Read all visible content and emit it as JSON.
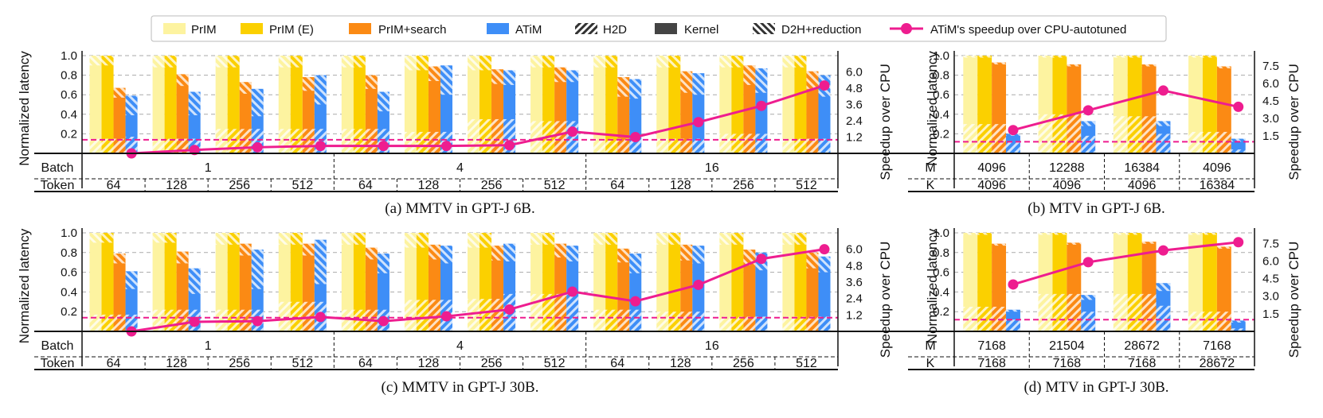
{
  "colors": {
    "prim": "#fdf3a0",
    "prim_e": "#fbd000",
    "prim_search": "#fb8a14",
    "atim": "#3e8ef7",
    "speedup": "#ee1d8f"
  },
  "legend": {
    "items": [
      {
        "label": "PrIM",
        "kind": "fill",
        "color": "#fdf3a0"
      },
      {
        "label": "PrIM (E)",
        "kind": "fill",
        "color": "#fbd000"
      },
      {
        "label": "PrIM+search",
        "kind": "fill",
        "color": "#fb8a14"
      },
      {
        "label": "ATiM",
        "kind": "fill",
        "color": "#3e8ef7"
      },
      {
        "label": "H2D",
        "kind": "h2d"
      },
      {
        "label": "Kernel",
        "kind": "kernel"
      },
      {
        "label": "D2H+reduction",
        "kind": "d2h"
      },
      {
        "label": "ATiM's speedup over CPU-autotuned",
        "kind": "line"
      }
    ]
  },
  "chart_data": [
    {
      "id": "a",
      "type": "bar",
      "caption": "(a) MMTV in GPT-J 6B.",
      "ylabel": "Normalized latency",
      "y2label": "Speedup over CPU",
      "ylim": [
        0,
        1.0
      ],
      "yticks": [
        "0.2",
        "0.4",
        "0.6",
        "0.8",
        "1.0"
      ],
      "y2lim": [
        0,
        7.2
      ],
      "y2ticks": [
        "1.2",
        "2.4",
        "3.6",
        "4.8",
        "6.0"
      ],
      "cpu_baseline": 1.0,
      "series_names": [
        "PrIM",
        "PrIM (E)",
        "PrIM+search",
        "ATiM"
      ],
      "row1": {
        "label": "Batch",
        "groups": [
          {
            "text": "1",
            "span": 4
          },
          {
            "text": "4",
            "span": 4
          },
          {
            "text": "16",
            "span": 4
          }
        ]
      },
      "row2": {
        "label": "Token",
        "values": [
          "64",
          "128",
          "256",
          "512",
          "64",
          "128",
          "256",
          "512",
          "64",
          "128",
          "256",
          "512"
        ]
      },
      "totals": [
        [
          1.0,
          1.0,
          0.67,
          0.59
        ],
        [
          1.0,
          1.0,
          0.81,
          0.63
        ],
        [
          1.0,
          1.0,
          0.73,
          0.66
        ],
        [
          1.0,
          1.0,
          0.78,
          0.8
        ],
        [
          1.0,
          1.0,
          0.8,
          0.63
        ],
        [
          1.0,
          1.0,
          0.89,
          0.9
        ],
        [
          1.0,
          1.0,
          0.86,
          0.85
        ],
        [
          1.0,
          1.0,
          0.88,
          0.85
        ],
        [
          1.0,
          1.0,
          0.78,
          0.76
        ],
        [
          1.0,
          1.0,
          0.84,
          0.82
        ],
        [
          1.0,
          1.0,
          0.9,
          0.87
        ],
        [
          1.0,
          1.0,
          0.84,
          0.8
        ]
      ],
      "h2d": [
        [
          0.15,
          0.15,
          0.15,
          0.17
        ],
        [
          0.15,
          0.15,
          0.15,
          0.15
        ],
        [
          0.25,
          0.25,
          0.25,
          0.25
        ],
        [
          0.25,
          0.25,
          0.25,
          0.25
        ],
        [
          0.25,
          0.25,
          0.25,
          0.25
        ],
        [
          0.22,
          0.22,
          0.22,
          0.22
        ],
        [
          0.35,
          0.35,
          0.35,
          0.35
        ],
        [
          0.33,
          0.33,
          0.33,
          0.33
        ],
        [
          0.15,
          0.15,
          0.15,
          0.15
        ],
        [
          0.15,
          0.15,
          0.15,
          0.15
        ],
        [
          0.2,
          0.2,
          0.2,
          0.2
        ],
        [
          0.15,
          0.15,
          0.15,
          0.15
        ]
      ],
      "d2h": [
        [
          0.1,
          0.1,
          0.1,
          0.2
        ],
        [
          0.12,
          0.12,
          0.12,
          0.24
        ],
        [
          0.12,
          0.12,
          0.12,
          0.28
        ],
        [
          0.12,
          0.12,
          0.14,
          0.3
        ],
        [
          0.12,
          0.12,
          0.14,
          0.2
        ],
        [
          0.15,
          0.15,
          0.15,
          0.3
        ],
        [
          0.15,
          0.15,
          0.15,
          0.15
        ],
        [
          0.12,
          0.12,
          0.15,
          0.12
        ],
        [
          0.12,
          0.12,
          0.2,
          0.2
        ],
        [
          0.12,
          0.12,
          0.22,
          0.22
        ],
        [
          0.12,
          0.12,
          0.2,
          0.25
        ],
        [
          0.12,
          0.12,
          0.18,
          0.22
        ]
      ],
      "speedup": [
        0.0,
        0.25,
        0.45,
        0.55,
        0.55,
        0.55,
        0.6,
        1.6,
        1.2,
        2.3,
        3.5,
        5.0
      ]
    },
    {
      "id": "b",
      "type": "bar",
      "caption": "(b) MTV in GPT-J 6B.",
      "ylabel": "Normalized latency",
      "y2label": "Speedup over CPU",
      "ylim": [
        0,
        1.0
      ],
      "yticks": [
        "0.2",
        "0.4",
        "0.6",
        "0.8",
        "1.0"
      ],
      "y2lim": [
        0,
        8.4
      ],
      "y2ticks": [
        "1.5",
        "3.0",
        "4.5",
        "6.0",
        "7.5"
      ],
      "cpu_baseline": 1.0,
      "series_names": [
        "PrIM",
        "PrIM (E)",
        "PrIM+search",
        "ATiM"
      ],
      "row1": {
        "label": "M",
        "values": [
          "4096",
          "12288",
          "16384",
          "4096"
        ]
      },
      "row2": {
        "label": "K",
        "values": [
          "4096",
          "4096",
          "4096",
          "16384"
        ]
      },
      "totals": [
        [
          1.0,
          1.0,
          0.93,
          0.2
        ],
        [
          1.0,
          1.0,
          0.91,
          0.33
        ],
        [
          1.0,
          1.0,
          0.91,
          0.33
        ],
        [
          1.0,
          1.0,
          0.89,
          0.15
        ]
      ],
      "h2d": [
        [
          0.3,
          0.3,
          0.3,
          0.12
        ],
        [
          0.4,
          0.4,
          0.4,
          0.18
        ],
        [
          0.38,
          0.38,
          0.38,
          0.2
        ],
        [
          0.22,
          0.22,
          0.22,
          0.04
        ]
      ],
      "d2h": [
        [
          0.02,
          0.02,
          0.02,
          0.02
        ],
        [
          0.02,
          0.02,
          0.02,
          0.05
        ],
        [
          0.02,
          0.02,
          0.02,
          0.05
        ],
        [
          0.02,
          0.02,
          0.02,
          0.03
        ]
      ],
      "speedup": [
        2.0,
        3.7,
        5.4,
        4.0
      ]
    },
    {
      "id": "c",
      "type": "bar",
      "caption": "(c) MMTV in GPT-J 30B.",
      "ylabel": "Normalized latency",
      "y2label": "Speedup over CPU",
      "ylim": [
        0,
        1.0
      ],
      "yticks": [
        "0.2",
        "0.4",
        "0.6",
        "0.8",
        "1.0"
      ],
      "y2lim": [
        0,
        7.2
      ],
      "y2ticks": [
        "1.2",
        "2.4",
        "3.6",
        "4.8",
        "6.0"
      ],
      "cpu_baseline": 1.0,
      "series_names": [
        "PrIM",
        "PrIM (E)",
        "PrIM+search",
        "ATiM"
      ],
      "row1": {
        "label": "Batch",
        "groups": [
          {
            "text": "1",
            "span": 4
          },
          {
            "text": "4",
            "span": 4
          },
          {
            "text": "16",
            "span": 4
          }
        ]
      },
      "row2": {
        "label": "Token",
        "values": [
          "64",
          "128",
          "256",
          "512",
          "64",
          "128",
          "256",
          "512",
          "64",
          "128",
          "256",
          "512"
        ]
      },
      "totals": [
        [
          1.0,
          1.0,
          0.79,
          0.61
        ],
        [
          1.0,
          1.0,
          0.81,
          0.64
        ],
        [
          1.0,
          1.0,
          0.89,
          0.83
        ],
        [
          1.0,
          1.0,
          0.89,
          0.93
        ],
        [
          1.0,
          1.0,
          0.85,
          0.79
        ],
        [
          1.0,
          1.0,
          0.88,
          0.87
        ],
        [
          1.0,
          1.0,
          0.87,
          0.89
        ],
        [
          1.0,
          1.0,
          0.89,
          0.87
        ],
        [
          1.0,
          1.0,
          0.84,
          0.79
        ],
        [
          1.0,
          1.0,
          0.88,
          0.87
        ],
        [
          1.0,
          1.0,
          0.83,
          0.8
        ],
        [
          1.0,
          1.0,
          0.8,
          0.76
        ]
      ],
      "h2d": [
        [
          0.17,
          0.17,
          0.17,
          0.17
        ],
        [
          0.22,
          0.22,
          0.22,
          0.22
        ],
        [
          0.22,
          0.22,
          0.22,
          0.22
        ],
        [
          0.3,
          0.3,
          0.3,
          0.3
        ],
        [
          0.22,
          0.22,
          0.22,
          0.22
        ],
        [
          0.32,
          0.32,
          0.32,
          0.32
        ],
        [
          0.33,
          0.33,
          0.33,
          0.38
        ],
        [
          0.38,
          0.38,
          0.38,
          0.38
        ],
        [
          0.22,
          0.22,
          0.22,
          0.22
        ],
        [
          0.2,
          0.2,
          0.2,
          0.2
        ],
        [
          0.15,
          0.15,
          0.15,
          0.15
        ],
        [
          0.15,
          0.15,
          0.15,
          0.15
        ]
      ],
      "d2h": [
        [
          0.1,
          0.1,
          0.1,
          0.18
        ],
        [
          0.1,
          0.1,
          0.12,
          0.26
        ],
        [
          0.12,
          0.12,
          0.12,
          0.4
        ],
        [
          0.12,
          0.12,
          0.12,
          0.45
        ],
        [
          0.12,
          0.12,
          0.12,
          0.2
        ],
        [
          0.15,
          0.15,
          0.15,
          0.18
        ],
        [
          0.15,
          0.15,
          0.15,
          0.18
        ],
        [
          0.12,
          0.12,
          0.14,
          0.16
        ],
        [
          0.12,
          0.12,
          0.14,
          0.2
        ],
        [
          0.12,
          0.12,
          0.16,
          0.18
        ],
        [
          0.12,
          0.12,
          0.16,
          0.18
        ],
        [
          0.12,
          0.12,
          0.16,
          0.16
        ]
      ],
      "speedup": [
        0.0,
        0.7,
        0.75,
        1.05,
        0.75,
        1.1,
        1.6,
        2.9,
        2.2,
        3.4,
        5.3,
        6.0
      ]
    },
    {
      "id": "d",
      "type": "bar",
      "caption": "(d) MTV in GPT-J 30B.",
      "ylabel": "Normalized latency",
      "y2label": "Speedup over CPU",
      "ylim": [
        0,
        1.0
      ],
      "yticks": [
        "0.2",
        "0.4",
        "0.6",
        "0.8",
        "1.0"
      ],
      "y2lim": [
        0,
        8.4
      ],
      "y2ticks": [
        "1.5",
        "3.0",
        "4.5",
        "6.0",
        "7.5"
      ],
      "cpu_baseline": 1.0,
      "series_names": [
        "PrIM",
        "PrIM (E)",
        "PrIM+search",
        "ATiM"
      ],
      "row1": {
        "label": "M",
        "values": [
          "7168",
          "21504",
          "28672",
          "7168"
        ]
      },
      "row2": {
        "label": "K",
        "values": [
          "7168",
          "7168",
          "7168",
          "28672"
        ]
      },
      "totals": [
        [
          1.0,
          1.0,
          0.89,
          0.22
        ],
        [
          1.0,
          1.0,
          0.9,
          0.37
        ],
        [
          1.0,
          1.0,
          0.91,
          0.49
        ],
        [
          1.0,
          1.0,
          0.86,
          0.11
        ]
      ],
      "h2d": [
        [
          0.25,
          0.25,
          0.25,
          0.12
        ],
        [
          0.38,
          0.38,
          0.38,
          0.2
        ],
        [
          0.38,
          0.38,
          0.38,
          0.26
        ],
        [
          0.2,
          0.2,
          0.2,
          0.03
        ]
      ],
      "d2h": [
        [
          0.02,
          0.02,
          0.02,
          0.02
        ],
        [
          0.02,
          0.02,
          0.02,
          0.05
        ],
        [
          0.02,
          0.02,
          0.02,
          0.08
        ],
        [
          0.02,
          0.02,
          0.02,
          0.02
        ]
      ],
      "speedup": [
        4.0,
        5.9,
        6.9,
        7.6
      ]
    }
  ]
}
